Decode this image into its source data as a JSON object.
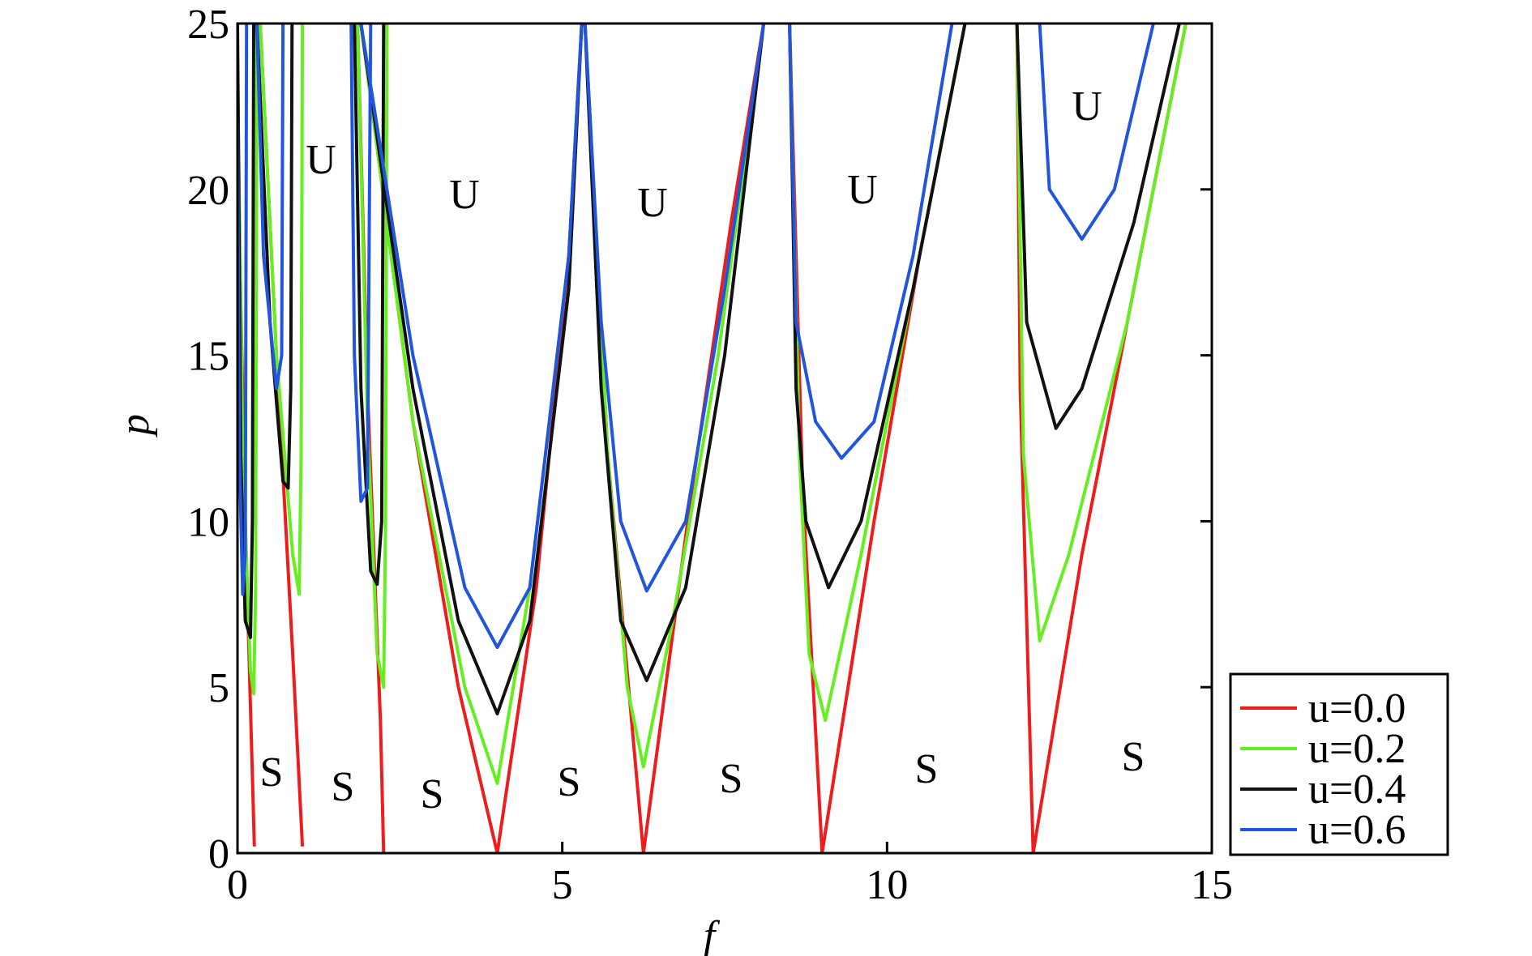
{
  "chart_data": {
    "type": "line",
    "xlabel": "f",
    "ylabel": "p",
    "xlim": [
      0,
      15
    ],
    "ylim": [
      0,
      25
    ],
    "xticks": [
      0,
      5,
      10,
      15
    ],
    "yticks": [
      0,
      5,
      10,
      15,
      20,
      25
    ],
    "legend": "lower right outside",
    "annotations": [
      "U",
      "U",
      "U",
      "U",
      "U",
      "S",
      "S",
      "S",
      "S",
      "S",
      "S",
      "S"
    ],
    "series": [
      {
        "name": "u=0.0",
        "color": "#ee1c1c",
        "x": [
          0.0,
          0.12,
          0.26,
          null,
          0.35,
          0.6,
          0.85,
          1.0,
          null,
          1.85,
          2.0,
          2.2,
          2.25,
          null,
          1.9,
          2.7,
          3.4,
          4.0,
          4.6,
          5.1,
          5.3,
          null,
          5.35,
          5.7,
          6.25,
          7.0,
          7.6,
          8.1,
          null,
          8.5,
          8.7,
          9.0,
          9.8,
          10.5,
          11.2,
          null,
          12.0,
          12.05,
          12.25,
          13.0,
          13.8,
          14.6
        ],
        "values": [
          21.5,
          10,
          0.2,
          null,
          25,
          15,
          6,
          0.2,
          null,
          25,
          14,
          4,
          0,
          null,
          25,
          13,
          5,
          0,
          8,
          18,
          25,
          null,
          25,
          12,
          0,
          11,
          19,
          25,
          null,
          25,
          11,
          0,
          10,
          18,
          25,
          null,
          25,
          14,
          0,
          9,
          17,
          25
        ]
      },
      {
        "name": "u=0.2",
        "color": "#66ee22",
        "x": [
          0.0,
          0.08,
          0.2,
          0.25,
          0.28,
          0.3,
          null,
          0.35,
          0.6,
          0.85,
          0.95,
          0.98,
          1.0,
          null,
          1.85,
          2.0,
          2.15,
          2.25,
          2.28,
          2.3,
          null,
          1.9,
          2.7,
          3.5,
          4.0,
          4.5,
          5.1,
          5.3,
          null,
          5.35,
          5.7,
          6.0,
          6.25,
          6.7,
          7.4,
          8.1,
          null,
          8.5,
          8.65,
          8.8,
          9.05,
          9.6,
          10.4,
          11.2,
          null,
          12.0,
          12.1,
          12.35,
          12.8,
          13.7,
          14.6
        ],
        "values": [
          24,
          12,
          5.5,
          4.8,
          8,
          25,
          null,
          25,
          15,
          9,
          7.8,
          12,
          25,
          null,
          25,
          13,
          6,
          5.0,
          10,
          25,
          null,
          25,
          13,
          5,
          2.1,
          8,
          18,
          25,
          null,
          25,
          12,
          5,
          2.6,
          7,
          15,
          25,
          null,
          25,
          12,
          6,
          4.0,
          9,
          17,
          25,
          null,
          25,
          12,
          6.4,
          9,
          16,
          25
        ]
      },
      {
        "name": "u=0.4",
        "color": "#111111",
        "x": [
          0.0,
          0.05,
          0.12,
          0.2,
          0.23,
          0.25,
          null,
          0.3,
          0.5,
          0.7,
          0.78,
          0.82,
          0.84,
          null,
          1.8,
          1.9,
          2.05,
          2.15,
          2.22,
          2.25,
          null,
          1.9,
          2.7,
          3.4,
          4.0,
          4.5,
          5.1,
          5.3,
          null,
          5.35,
          5.6,
          5.9,
          6.3,
          6.9,
          7.5,
          8.1,
          null,
          8.5,
          8.6,
          8.75,
          9.1,
          9.6,
          10.4,
          11.2,
          null,
          12.0,
          12.15,
          12.6,
          13.0,
          13.8,
          14.5
        ],
        "values": [
          25,
          12,
          7,
          6.5,
          10,
          25,
          null,
          25,
          16,
          11.2,
          11,
          14,
          25,
          null,
          25,
          14,
          8.5,
          8.1,
          10,
          25,
          null,
          25,
          14,
          7,
          4.2,
          7,
          17,
          25,
          null,
          25,
          14,
          7,
          5.2,
          8,
          15,
          25,
          null,
          25,
          14,
          10,
          8,
          10,
          17,
          25,
          null,
          25,
          16,
          12.8,
          14,
          19,
          25
        ]
      },
      {
        "name": "u=0.6",
        "color": "#2255dd",
        "x": [
          0.0,
          0.03,
          0.08,
          0.12,
          0.14,
          null,
          0.3,
          0.4,
          0.6,
          0.68,
          0.7,
          null,
          1.75,
          1.8,
          1.9,
          2.0,
          2.05,
          null,
          1.9,
          2.7,
          3.5,
          4.0,
          4.5,
          5.1,
          5.3,
          null,
          5.35,
          5.6,
          5.9,
          6.3,
          6.9,
          7.5,
          8.1,
          null,
          8.5,
          8.6,
          8.9,
          9.3,
          9.8,
          10.4,
          11.0,
          null,
          12.35,
          12.5,
          13.0,
          13.5,
          14.1
        ],
        "values": [
          22,
          12,
          7.8,
          9,
          25,
          null,
          25,
          18,
          14,
          15,
          25,
          null,
          25,
          15,
          10.6,
          11,
          25,
          null,
          25,
          15,
          8,
          6.2,
          8,
          18,
          25,
          null,
          25,
          16,
          10,
          7.9,
          10,
          17,
          25,
          null,
          25,
          16,
          13,
          11.9,
          13,
          18,
          25,
          null,
          25,
          20,
          18.5,
          20,
          25
        ]
      }
    ]
  }
}
